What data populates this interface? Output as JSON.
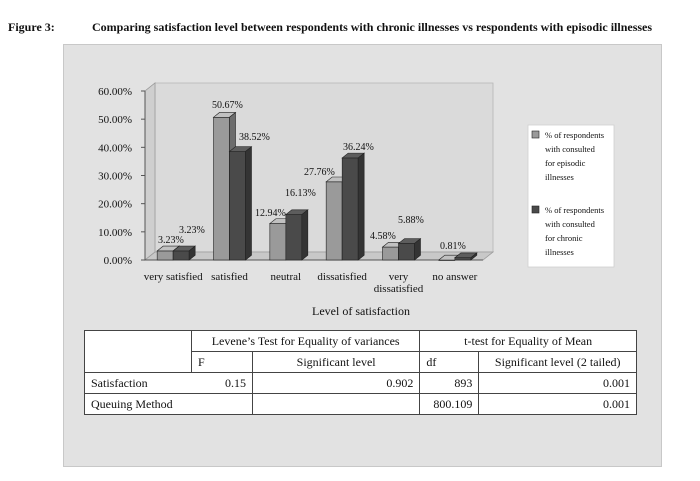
{
  "figure": {
    "label": "Figure 3:",
    "title": "Comparing satisfaction level between respondents with chronic illnesses vs respondents with episodic illnesses"
  },
  "chart_data": {
    "type": "bar",
    "style": "3d-clustered",
    "xlabel": "Level of satisfaction",
    "ylabel": "",
    "ylim": [
      0,
      60
    ],
    "yticks": [
      "0.00%",
      "10.00%",
      "20.00%",
      "30.00%",
      "40.00%",
      "50.00%",
      "60.00%"
    ],
    "categories": [
      [
        "very satisfied"
      ],
      [
        "satisfied"
      ],
      [
        "neutral"
      ],
      [
        "dissatisfied"
      ],
      [
        "very",
        "dissatisfied"
      ],
      [
        "no answer"
      ]
    ],
    "series": [
      {
        "name": "% of respondents with consulted for episodic illnesses",
        "legend_lines": [
          "% of respondents",
          "with consulted",
          "for episodic",
          "illnesses"
        ],
        "color": "#9a9a9a",
        "values": [
          3.23,
          50.67,
          12.94,
          27.76,
          4.58,
          0
        ],
        "labels": [
          "3.23%",
          "50.67%",
          "12.94%",
          "27.76%",
          "4.58%",
          ""
        ]
      },
      {
        "name": "% of respondents with consulted for chronic illnesses",
        "legend_lines": [
          "% of respondents",
          "with consulted",
          "for chronic",
          "illnesses"
        ],
        "color": "#4a4a4a",
        "values": [
          3.23,
          38.52,
          16.13,
          36.24,
          5.88,
          0.81
        ],
        "labels": [
          "3.23%",
          "38.52%",
          "16.13%",
          "36.24%",
          "5.88%",
          "0.81%"
        ]
      }
    ],
    "grid": false,
    "legend_position": "right"
  },
  "table": {
    "group_headers": [
      "Levene’s Test for Equality of variances",
      "t-test for Equality of Mean"
    ],
    "sub_headers": [
      "F",
      "Significant level",
      "df",
      "Significant level (2 tailed)"
    ],
    "rows": [
      {
        "label": "Satisfaction",
        "f": "0.15",
        "sig": "0.902",
        "df": "893",
        "sig2": "0.001"
      },
      {
        "label": "Queuing Method",
        "f": "",
        "sig": "",
        "df": "800.109",
        "sig2": "0.001"
      }
    ]
  }
}
